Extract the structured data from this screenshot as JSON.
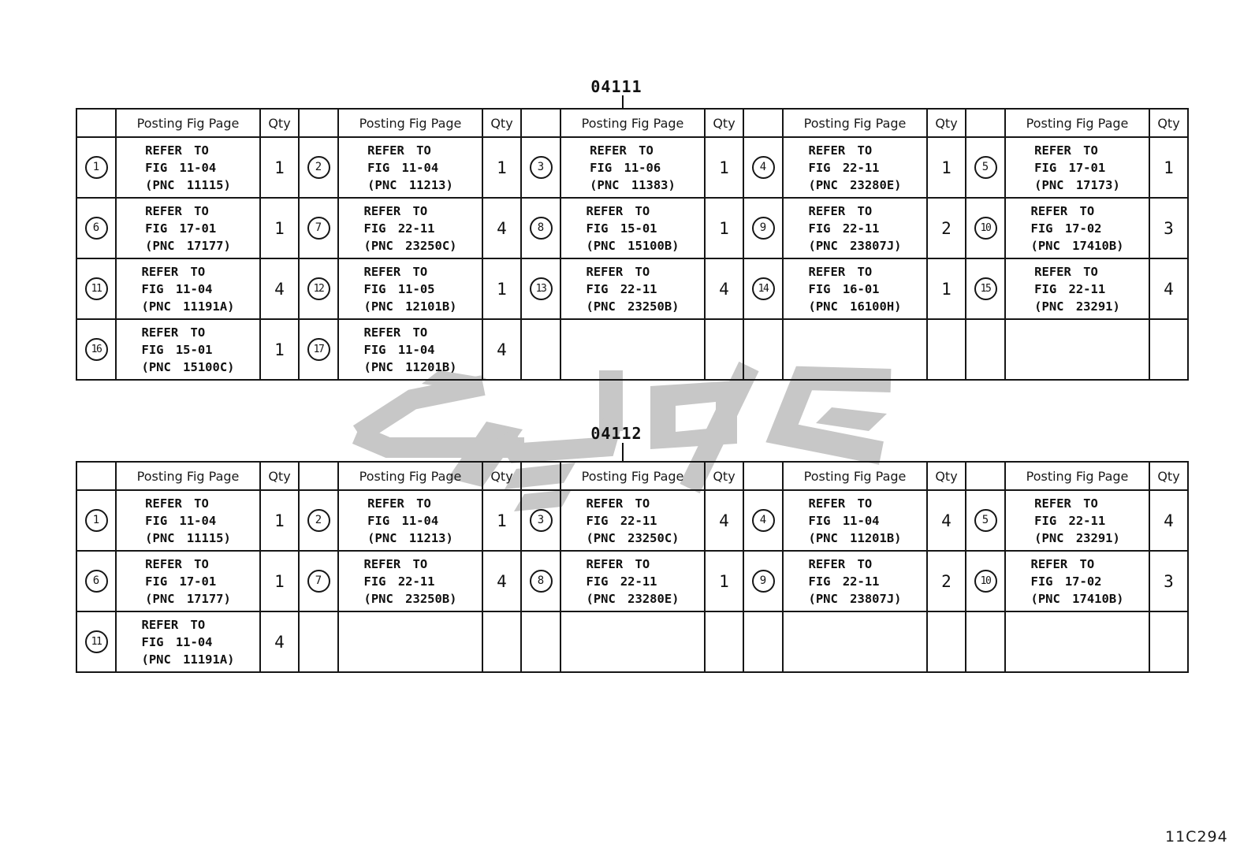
{
  "labels": {
    "posting_header": "Posting Fig Page",
    "qty_header": "Qty",
    "refer_to": "REFER TO",
    "fig_prefix": "FIG",
    "pnc_prefix": "PNC"
  },
  "watermark": {
    "name": "gray-logo-watermark",
    "color": "#c7c7c7"
  },
  "footer_code": "11C294",
  "tables": [
    {
      "title": "04111",
      "rows": [
        [
          {
            "num": "1",
            "fig": "11-04",
            "pnc": "11115",
            "qty": "1"
          },
          {
            "num": "2",
            "fig": "11-04",
            "pnc": "11213",
            "qty": "1"
          },
          {
            "num": "3",
            "fig": "11-06",
            "pnc": "11383",
            "qty": "1"
          },
          {
            "num": "4",
            "fig": "22-11",
            "pnc": "23280E",
            "qty": "1"
          },
          {
            "num": "5",
            "fig": "17-01",
            "pnc": "17173",
            "qty": "1"
          }
        ],
        [
          {
            "num": "6",
            "fig": "17-01",
            "pnc": "17177",
            "qty": "1"
          },
          {
            "num": "7",
            "fig": "22-11",
            "pnc": "23250C",
            "qty": "4"
          },
          {
            "num": "8",
            "fig": "15-01",
            "pnc": "15100B",
            "qty": "1"
          },
          {
            "num": "9",
            "fig": "22-11",
            "pnc": "23807J",
            "qty": "2"
          },
          {
            "num": "10",
            "fig": "17-02",
            "pnc": "17410B",
            "qty": "3"
          }
        ],
        [
          {
            "num": "11",
            "fig": "11-04",
            "pnc": "11191A",
            "qty": "4"
          },
          {
            "num": "12",
            "fig": "11-05",
            "pnc": "12101B",
            "qty": "1"
          },
          {
            "num": "13",
            "fig": "22-11",
            "pnc": "23250B",
            "qty": "4"
          },
          {
            "num": "14",
            "fig": "16-01",
            "pnc": "16100H",
            "qty": "1"
          },
          {
            "num": "15",
            "fig": "22-11",
            "pnc": "23291",
            "qty": "4"
          }
        ],
        [
          {
            "num": "16",
            "fig": "15-01",
            "pnc": "15100C",
            "qty": "1"
          },
          {
            "num": "17",
            "fig": "11-04",
            "pnc": "11201B",
            "qty": "4"
          },
          null,
          null,
          null
        ]
      ]
    },
    {
      "title": "04112",
      "rows": [
        [
          {
            "num": "1",
            "fig": "11-04",
            "pnc": "11115",
            "qty": "1"
          },
          {
            "num": "2",
            "fig": "11-04",
            "pnc": "11213",
            "qty": "1"
          },
          {
            "num": "3",
            "fig": "22-11",
            "pnc": "23250C",
            "qty": "4"
          },
          {
            "num": "4",
            "fig": "11-04",
            "pnc": "11201B",
            "qty": "4"
          },
          {
            "num": "5",
            "fig": "22-11",
            "pnc": "23291",
            "qty": "4"
          }
        ],
        [
          {
            "num": "6",
            "fig": "17-01",
            "pnc": "17177",
            "qty": "1"
          },
          {
            "num": "7",
            "fig": "22-11",
            "pnc": "23250B",
            "qty": "4"
          },
          {
            "num": "8",
            "fig": "22-11",
            "pnc": "23280E",
            "qty": "1"
          },
          {
            "num": "9",
            "fig": "22-11",
            "pnc": "23807J",
            "qty": "2"
          },
          {
            "num": "10",
            "fig": "17-02",
            "pnc": "17410B",
            "qty": "3"
          }
        ],
        [
          {
            "num": "11",
            "fig": "11-04",
            "pnc": "11191A",
            "qty": "4"
          },
          null,
          null,
          null,
          null
        ]
      ]
    }
  ]
}
